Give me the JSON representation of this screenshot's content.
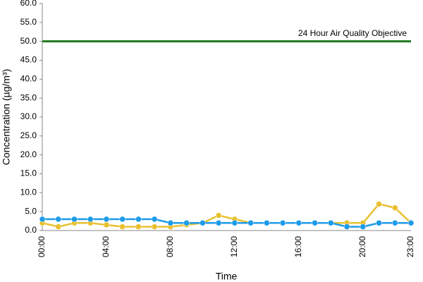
{
  "chart_data": {
    "type": "line",
    "xlabel": "Time",
    "ylabel": "Concentration (µg/m³)",
    "categories": [
      "00:00",
      null,
      null,
      null,
      "04:00",
      null,
      null,
      null,
      "08:00",
      null,
      null,
      null,
      "12:00",
      null,
      null,
      null,
      "16:00",
      null,
      null,
      null,
      "20:00",
      null,
      null,
      "23:00"
    ],
    "series": [
      {
        "color": "#e8c030",
        "values": [
          2,
          1,
          2,
          2,
          1.5,
          1,
          1,
          1,
          1,
          1.5,
          2,
          4,
          3,
          2,
          2,
          2,
          2,
          2,
          2,
          2,
          2,
          7,
          6,
          2
        ]
      },
      {
        "color": "#1e9be8",
        "values": [
          3,
          3,
          3,
          3,
          3,
          3,
          3,
          3,
          2,
          2,
          2,
          2,
          2,
          2,
          2,
          2,
          2,
          2,
          2,
          1,
          1,
          2,
          2,
          2
        ]
      }
    ],
    "objective": {
      "value": 50,
      "label": "24 Hour Air Quality Objective",
      "color": "#1f7a1f"
    },
    "ylim": [
      0,
      60
    ],
    "yticks": [
      {
        "value": 0,
        "label": "0.0"
      },
      {
        "value": 5,
        "label": "5.0"
      },
      {
        "value": 10,
        "label": "10.0"
      },
      {
        "value": 15,
        "label": "15.0"
      },
      {
        "value": 20,
        "label": "20.0"
      },
      {
        "value": 25,
        "label": "25.0"
      },
      {
        "value": 30,
        "label": "30.0"
      },
      {
        "value": 35,
        "label": "35.0"
      },
      {
        "value": 40,
        "label": "40.0"
      },
      {
        "value": 45,
        "label": "45.0"
      },
      {
        "value": 50,
        "label": "50.0"
      },
      {
        "value": 55,
        "label": "55.0"
      },
      {
        "value": 60,
        "label": "60.0"
      }
    ],
    "grid": false
  }
}
